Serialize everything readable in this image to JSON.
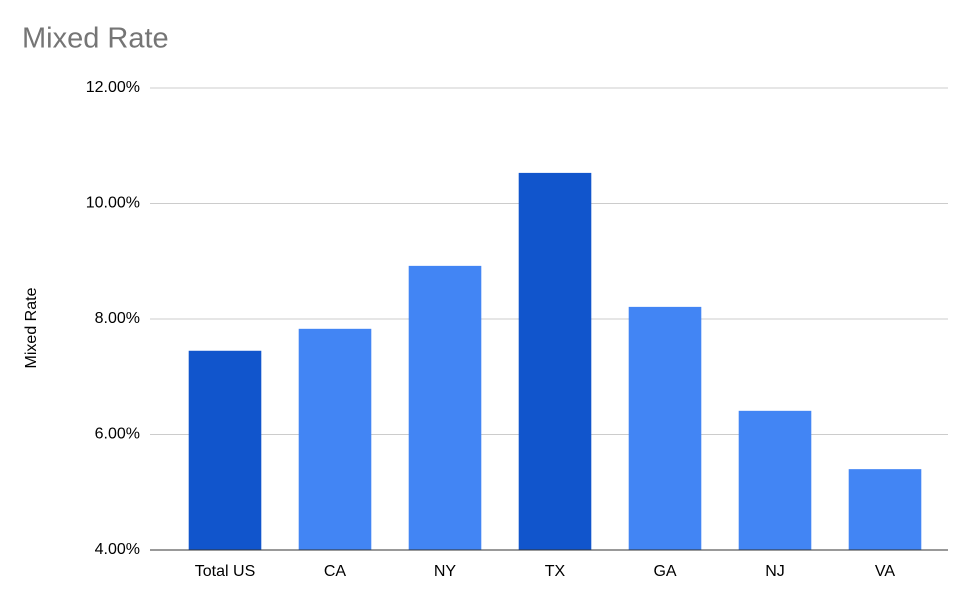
{
  "chart_data": {
    "type": "bar",
    "title": "Mixed Rate",
    "y_label": "Mixed Rate",
    "categories": [
      "Total US",
      "CA",
      "NY",
      "TX",
      "GA",
      "NJ",
      "VA"
    ],
    "values": [
      7.45,
      7.83,
      8.92,
      10.53,
      8.21,
      6.41,
      5.4
    ],
    "colors": [
      "#1155cc",
      "#4285f4",
      "#4285f4",
      "#1155cc",
      "#4285f4",
      "#4285f4",
      "#4285f4"
    ],
    "ylim": [
      4,
      12
    ],
    "yticks": [
      {
        "value": 4,
        "label": "4.00%"
      },
      {
        "value": 6,
        "label": "6.00%"
      },
      {
        "value": 8,
        "label": "8.00%"
      },
      {
        "value": 10,
        "label": "10.00%"
      },
      {
        "value": 12,
        "label": "12.00%"
      }
    ],
    "grid": true
  }
}
